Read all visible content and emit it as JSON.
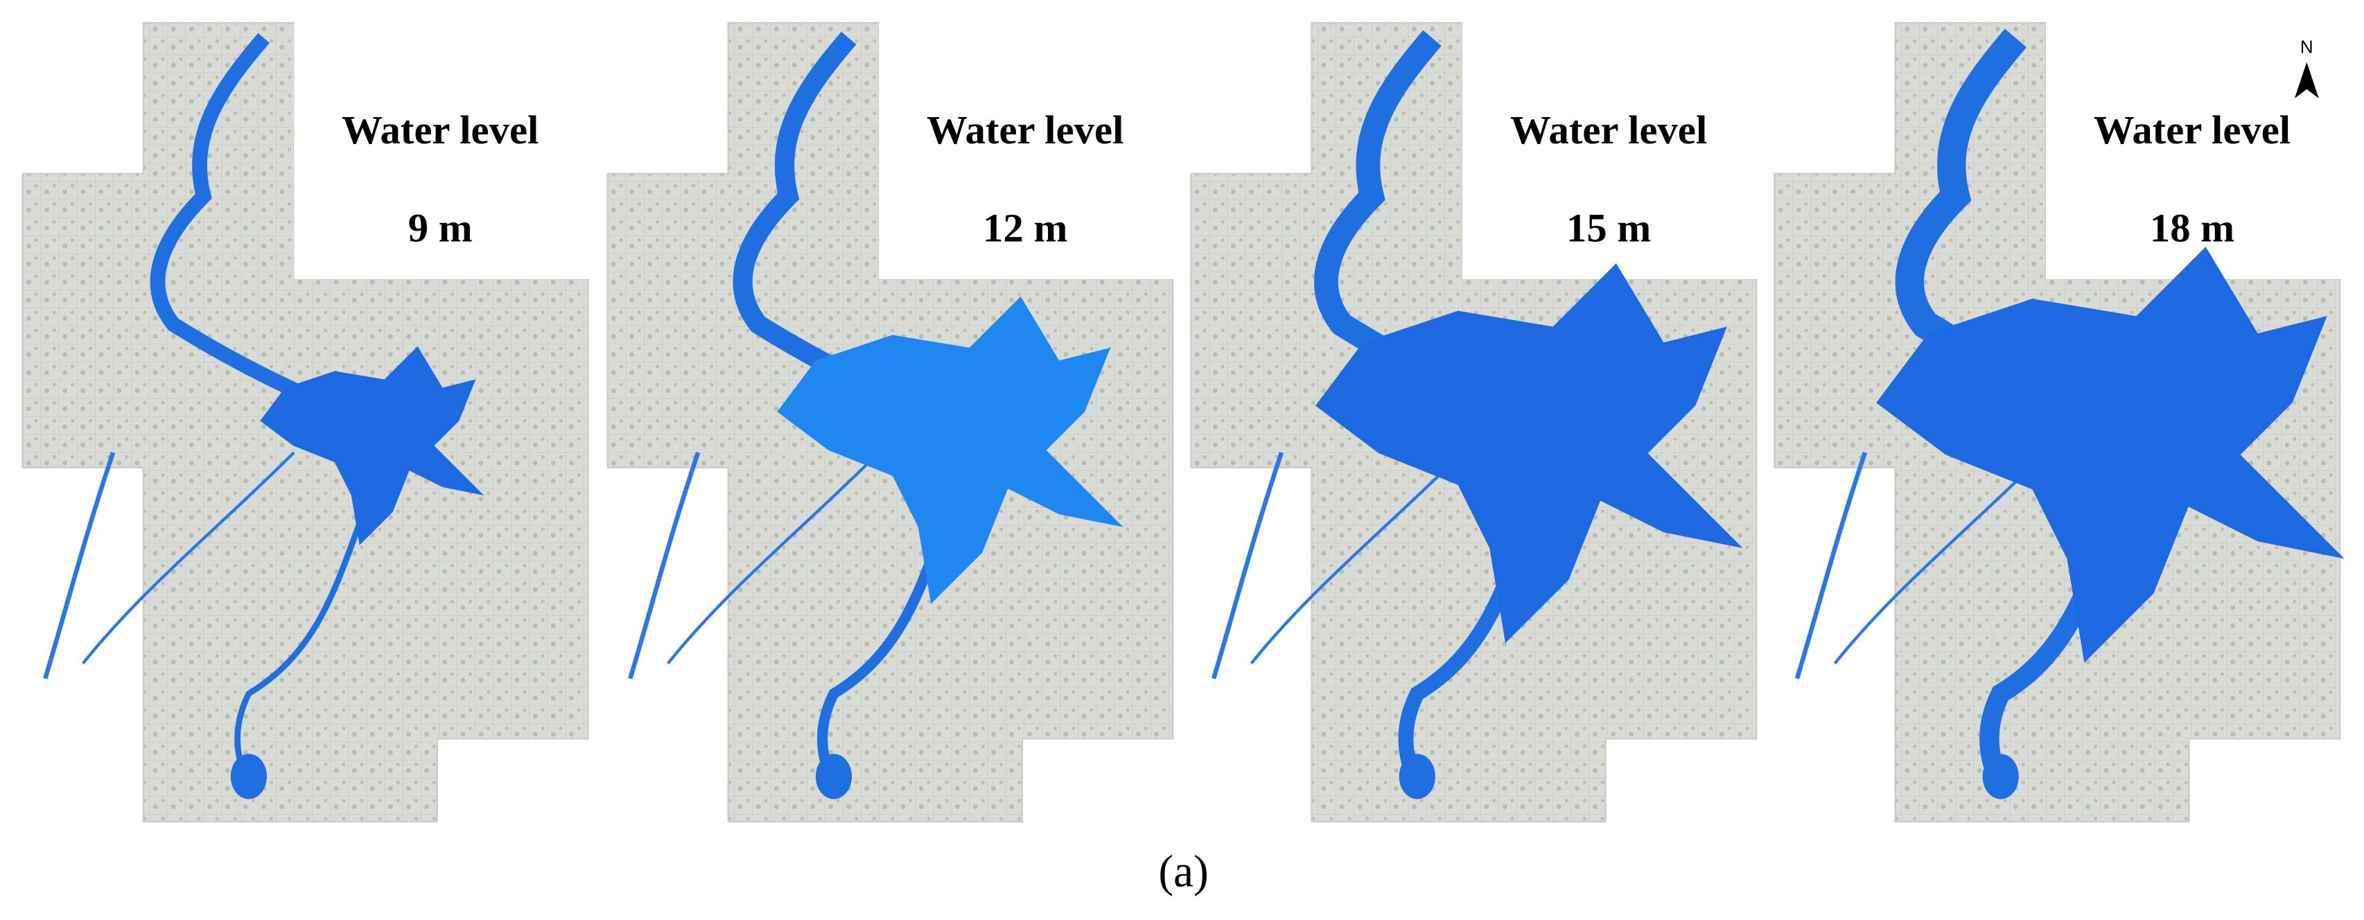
{
  "panels": [
    {
      "title": "Water level",
      "level": "9 m"
    },
    {
      "title": "Water level",
      "level": "12 m"
    },
    {
      "title": "Water level",
      "level": "15 m"
    },
    {
      "title": "Water level",
      "level": "18 m"
    }
  ],
  "north": "N",
  "caption": "(a)"
}
